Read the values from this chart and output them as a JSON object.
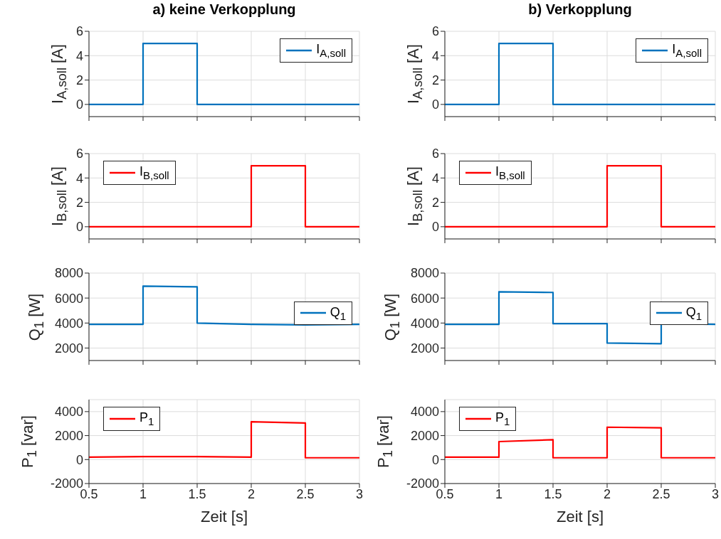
{
  "chart_data": [
    {
      "type": "line",
      "title": "a) keine Verkopplung",
      "ylabel": "I$_{A,soll}$ [A]",
      "xlim": [
        0.5,
        3
      ],
      "xticks": [
        0.5,
        1,
        1.5,
        2,
        2.5,
        3
      ],
      "ylim": [
        -1,
        6
      ],
      "yticks": [
        0,
        2,
        4,
        6
      ],
      "grid": true,
      "legend": "top right",
      "tick_labels": "y",
      "series": [
        {
          "name": "I$_{A,soll}$",
          "color": "#0072bd",
          "x": [
            0.5,
            1,
            1,
            1.5,
            1.5,
            3
          ],
          "values": [
            0,
            0,
            5,
            5,
            0,
            0
          ]
        }
      ]
    },
    {
      "type": "line",
      "title": "b) Verkopplung",
      "ylabel": "I$_{A,soll}$ [A]",
      "xlim": [
        0.5,
        3
      ],
      "xticks": [
        0.5,
        1,
        1.5,
        2,
        2.5,
        3
      ],
      "ylim": [
        -1,
        6
      ],
      "yticks": [
        0,
        2,
        4,
        6
      ],
      "grid": true,
      "legend": "top right",
      "tick_labels": "y",
      "series": [
        {
          "name": "I$_{A,soll}$",
          "color": "#0072bd",
          "x": [
            0.5,
            1,
            1,
            1.5,
            1.5,
            3
          ],
          "values": [
            0,
            0,
            5,
            5,
            0,
            0
          ]
        }
      ]
    },
    {
      "type": "line",
      "ylabel": "I$_{B,soll}$ [A]",
      "xlim": [
        0.5,
        3
      ],
      "xticks": [
        0.5,
        1,
        1.5,
        2,
        2.5,
        3
      ],
      "ylim": [
        -1,
        6
      ],
      "yticks": [
        0,
        2,
        4,
        6
      ],
      "grid": true,
      "legend": "top left",
      "tick_labels": "y",
      "series": [
        {
          "name": "I$_{B,soll}$",
          "color": "#ff0000",
          "x": [
            0.5,
            2,
            2,
            2.5,
            2.5,
            3
          ],
          "values": [
            0,
            0,
            5,
            5,
            0,
            0
          ]
        }
      ]
    },
    {
      "type": "line",
      "ylabel": "I$_{B,soll}$ [A]",
      "xlim": [
        0.5,
        3
      ],
      "xticks": [
        0.5,
        1,
        1.5,
        2,
        2.5,
        3
      ],
      "ylim": [
        -1,
        6
      ],
      "yticks": [
        0,
        2,
        4,
        6
      ],
      "grid": true,
      "legend": "top left",
      "tick_labels": "y",
      "series": [
        {
          "name": "I$_{B,soll}$",
          "color": "#ff0000",
          "x": [
            0.5,
            2,
            2,
            2.5,
            2.5,
            3
          ],
          "values": [
            0,
            0,
            5,
            5,
            0,
            0
          ]
        }
      ]
    },
    {
      "type": "line",
      "ylabel": "Q$_{1}$ [W]",
      "xlim": [
        0.5,
        3
      ],
      "xticks": [
        0.5,
        1,
        1.5,
        2,
        2.5,
        3
      ],
      "ylim": [
        1000,
        8000
      ],
      "yticks": [
        2000,
        4000,
        6000,
        8000
      ],
      "grid": true,
      "legend": "right",
      "tick_labels": "y",
      "series": [
        {
          "name": "Q$_{1}$",
          "color": "#0072bd",
          "x": [
            0.5,
            1,
            1,
            1.5,
            1.5,
            2,
            2.5,
            3
          ],
          "values": [
            3900,
            3900,
            6950,
            6900,
            4000,
            3900,
            3850,
            3900
          ]
        }
      ]
    },
    {
      "type": "line",
      "ylabel": "Q$_{1}$ [W]",
      "xlim": [
        0.5,
        3
      ],
      "xticks": [
        0.5,
        1,
        1.5,
        2,
        2.5,
        3
      ],
      "ylim": [
        1000,
        8000
      ],
      "yticks": [
        2000,
        4000,
        6000,
        8000
      ],
      "grid": true,
      "legend": "right",
      "tick_labels": "y",
      "series": [
        {
          "name": "Q$_{1}$",
          "color": "#0072bd",
          "x": [
            0.5,
            1,
            1,
            1.5,
            1.5,
            2,
            2,
            2.5,
            2.5,
            3
          ],
          "values": [
            3900,
            3900,
            6500,
            6450,
            3950,
            3950,
            2400,
            2350,
            3950,
            3900
          ]
        }
      ]
    },
    {
      "type": "line",
      "ylabel": "P$_{1}$ [var]",
      "xlabel": "Zeit [s]",
      "xlim": [
        0.5,
        3
      ],
      "xticks": [
        0.5,
        1,
        1.5,
        2,
        2.5,
        3
      ],
      "ylim": [
        -2000,
        5000
      ],
      "yticks": [
        -2000,
        0,
        2000,
        4000
      ],
      "grid": true,
      "legend": "top left",
      "series": [
        {
          "name": "P$_{1}$",
          "color": "#ff0000",
          "x": [
            0.5,
            1,
            1.5,
            2,
            2,
            2.5,
            2.5,
            3
          ],
          "values": [
            200,
            250,
            250,
            200,
            3150,
            3050,
            150,
            150
          ]
        }
      ]
    },
    {
      "type": "line",
      "ylabel": "P$_{1}$ [var]",
      "xlabel": "Zeit [s]",
      "xlim": [
        0.5,
        3
      ],
      "xticks": [
        0.5,
        1,
        1.5,
        2,
        2.5,
        3
      ],
      "ylim": [
        -2000,
        5000
      ],
      "yticks": [
        -2000,
        0,
        2000,
        4000
      ],
      "grid": true,
      "legend": "top left",
      "series": [
        {
          "name": "P$_{1}$",
          "color": "#ff0000",
          "x": [
            0.5,
            1,
            1,
            1.5,
            1.5,
            2,
            2,
            2.5,
            2.5,
            3
          ],
          "values": [
            200,
            200,
            1500,
            1650,
            150,
            150,
            2700,
            2650,
            150,
            150
          ]
        }
      ]
    }
  ]
}
